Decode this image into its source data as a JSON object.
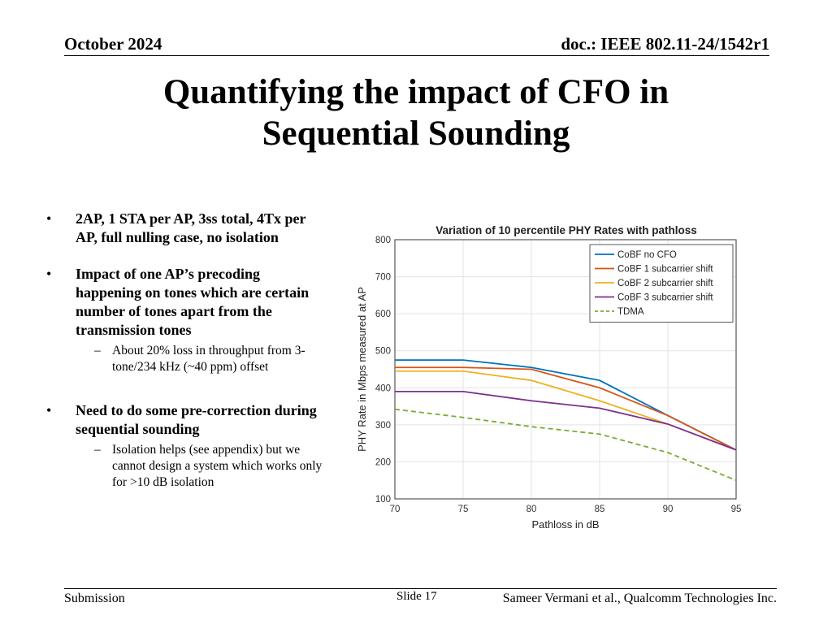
{
  "header": {
    "date": "October 2024",
    "doc": "doc.: IEEE 802.11-24/1542r1"
  },
  "title": {
    "line1": "Quantifying the impact of CFO in",
    "line2": "Sequential Sounding"
  },
  "bullets": [
    {
      "text": "2AP, 1 STA per AP, 3ss total, 4Tx per AP, full nulling case, no isolation"
    },
    {
      "text": "Impact of one AP’s precoding happening on tones which are certain number of tones apart from the transmission tones",
      "sub": "About 20% loss in throughput from 3-tone/234 kHz (~40 ppm) offset"
    },
    {
      "text": "Need to do some pre-correction during sequential sounding",
      "sub": "Isolation helps (see appendix) but we cannot design a system which works only for >10 dB isolation"
    }
  ],
  "chart_data": {
    "type": "line",
    "title": "Variation of 10 percentile PHY Rates with pathloss",
    "xlabel": "Pathloss in dB",
    "ylabel": "PHY Rate in Mbps measured at AP",
    "xlim": [
      70,
      95
    ],
    "ylim": [
      100,
      800
    ],
    "xticks": [
      70,
      75,
      80,
      85,
      90,
      95
    ],
    "yticks": [
      100,
      200,
      300,
      400,
      500,
      600,
      700,
      800
    ],
    "legend_position": "top-right",
    "x": [
      70,
      75,
      80,
      85,
      90,
      95
    ],
    "series": [
      {
        "name": "CoBF no CFO",
        "color": "#0072BD",
        "dash": false,
        "values": [
          475,
          475,
          455,
          420,
          325,
          232
        ]
      },
      {
        "name": "CoBF 1 subcarrier shift",
        "color": "#D95319",
        "dash": false,
        "values": [
          455,
          455,
          450,
          400,
          325,
          232
        ]
      },
      {
        "name": "CoBF 2 subcarrier shift",
        "color": "#EDB120",
        "dash": false,
        "values": [
          445,
          445,
          420,
          365,
          302,
          232
        ]
      },
      {
        "name": "CoBF 3 subcarrier shift",
        "color": "#7E2F8E",
        "dash": false,
        "values": [
          390,
          390,
          365,
          345,
          302,
          232
        ]
      },
      {
        "name": "TDMA",
        "color": "#77AC30",
        "dash": true,
        "values": [
          342,
          320,
          295,
          275,
          225,
          150
        ]
      }
    ]
  },
  "footer": {
    "left": "Submission",
    "slide": "Slide 17",
    "right": "Sameer Vermani et al., Qualcomm Technologies Inc."
  }
}
